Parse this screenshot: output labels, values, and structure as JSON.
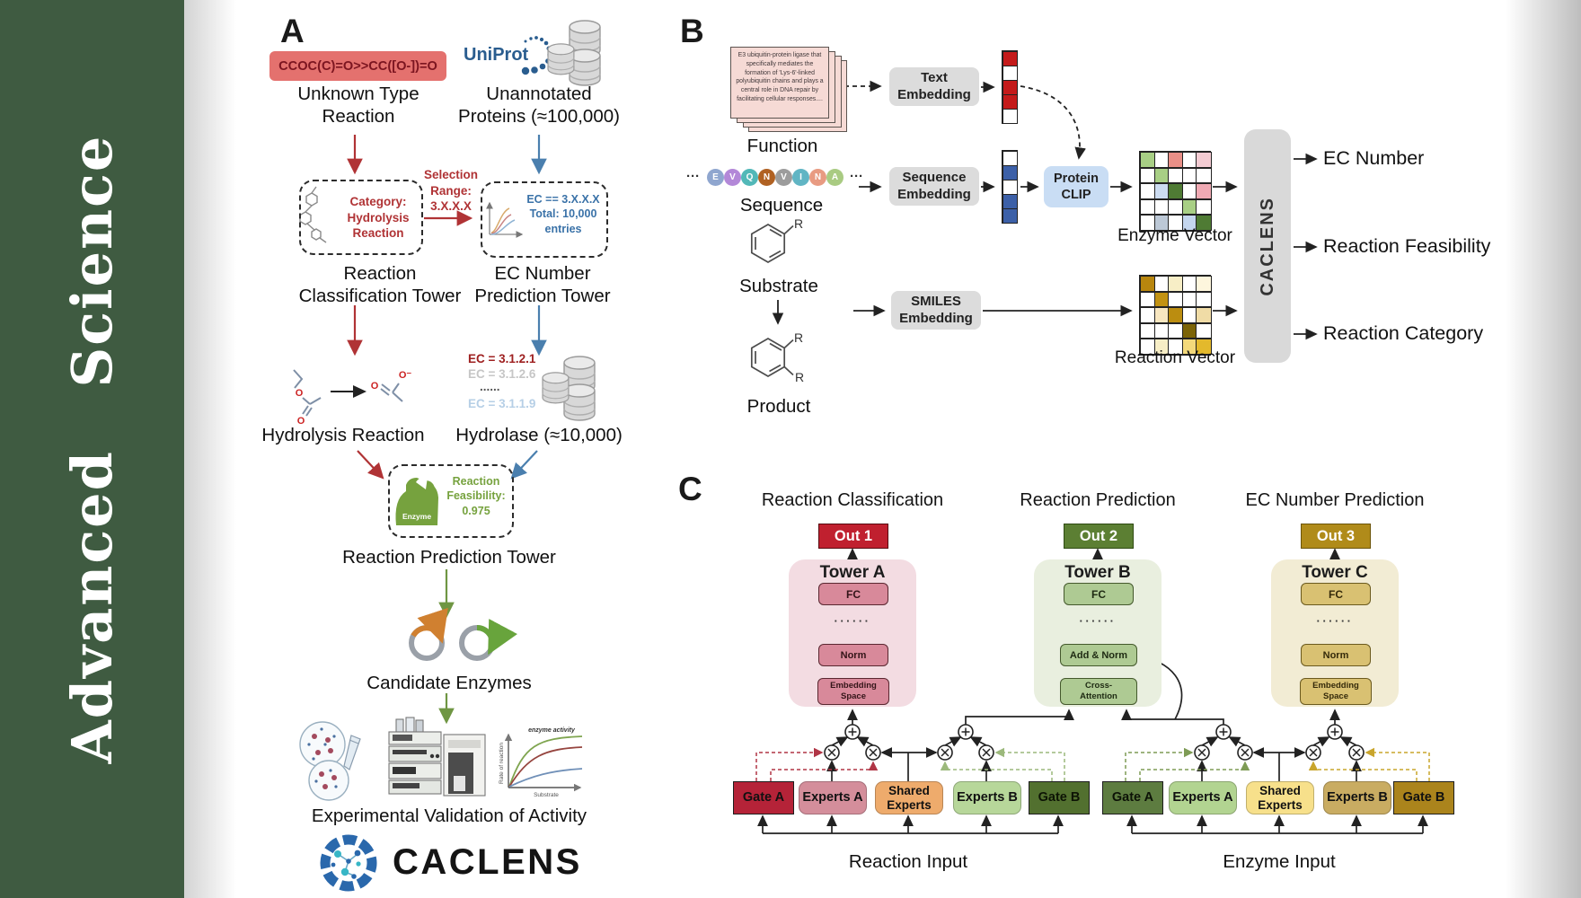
{
  "sidebar": {
    "journal": "Advanced  Science",
    "bg_color": "#3f5b41"
  },
  "panelA": {
    "label": "A",
    "smiles": "CCOC(C)=O>>CC([O-])=O",
    "unknown_reaction": "Unknown Type\nReaction",
    "uniprot": "UniProt",
    "unannotated": "Unannotated\nProteins (≈100,000)",
    "category_box": "Category:\nHydrolysis\nReaction",
    "selection": "Selection\nRange:\n3.X.X.X",
    "ec_box": "EC == 3.X.X.X\nTotal: 10,000\nentries",
    "classification_tower": "Reaction\nClassification Tower",
    "ec_tower": "EC Number\nPrediction Tower",
    "hydrolysis": "Hydrolysis Reaction",
    "hydrolase": "Hydrolase (≈10,000)",
    "ec_list": [
      {
        "text": "EC = 3.1.2.1",
        "color": "#9e2020"
      },
      {
        "text": "EC = 3.1.2.6",
        "color": "#c6c6c6"
      },
      {
        "text": "......",
        "color": "#555555"
      },
      {
        "text": "EC = 3.1.1.9",
        "color": "#b6cfe6"
      }
    ],
    "enzyme": "Enzyme",
    "feasibility": "Reaction\nFeasibility:\n0.975",
    "prediction_tower": "Reaction Prediction Tower",
    "candidates": "Candidate Enzymes",
    "validation": "Experimental Validation of Activity",
    "brand": "CACLENS",
    "plot": {
      "legend": "enzyme activity",
      "ylabel": "Rate of reaction",
      "xlabel": "Substrate"
    }
  },
  "panelB": {
    "label": "B",
    "function_card": "E3 ubiquitin-protein ligase that specifically mediates the formation of 'Lys-6'-linked polyubiquitin chains and plays a central role in DNA repair by facilitating cellular responses....",
    "function": "Function",
    "sequence": "Sequence",
    "substrate": "Substrate",
    "product": "Product",
    "r_label": "R",
    "dots": "···",
    "residues": [
      {
        "l": "E",
        "c": "#8fa6cf"
      },
      {
        "l": "V",
        "c": "#b388d8"
      },
      {
        "l": "Q",
        "c": "#52b8b8"
      },
      {
        "l": "N",
        "c": "#b06122"
      },
      {
        "l": "V",
        "c": "#9c9c9c"
      },
      {
        "l": "I",
        "c": "#61b5c4"
      },
      {
        "l": "N",
        "c": "#e89b82"
      },
      {
        "l": "A",
        "c": "#a9cb82"
      }
    ],
    "text_embedding": "Text\nEmbedding",
    "sequence_embedding": "Sequence\nEmbedding",
    "smiles_embedding": "SMILES\nEmbedding",
    "protein_clip": "Protein\nCLIP",
    "enzyme_vector": "Enzyme Vector",
    "reaction_vector": "Reaction Vector",
    "caclens": "CACLENS",
    "outputs": [
      "EC Number",
      "Reaction Feasibility",
      "Reaction Category"
    ],
    "text_vec": [
      "#c41a1a",
      "#ffffff",
      "#c41a1a",
      "#c41a1a",
      "#ffffff"
    ],
    "seq_vec": [
      "#ffffff",
      "#3c60a8",
      "#ffffff",
      "#3c60a8",
      "#3c60a8"
    ],
    "enzyme_matrix": [
      [
        "#a8cf85",
        "#ffffff",
        "#e98f87",
        "#ffffff",
        "#f4ccd3"
      ],
      [
        "#ffffff",
        "#a8cf85",
        "#ffffff",
        "#ffffff",
        "#ffffff"
      ],
      [
        "#ffffff",
        "#ccdcf1",
        "#4f7b34",
        "#ffffff",
        "#f0aab4"
      ],
      [
        "#ffffff",
        "#ffffff",
        "#ffffff",
        "#a8cf85",
        "#ffffff"
      ],
      [
        "#ffffff",
        "#bcc8d6",
        "#ffffff",
        "#c4d6ee",
        "#4f7b34"
      ]
    ],
    "reaction_matrix": [
      [
        "#b8860e",
        "#ffffff",
        "#f7eec6",
        "#ffffff",
        "#fdf6dd"
      ],
      [
        "#ffffff",
        "#c29212",
        "#ffffff",
        "#ffffff",
        "#ffffff"
      ],
      [
        "#ffffff",
        "#f8e7c0",
        "#bb8d10",
        "#ffffff",
        "#f0dca6"
      ],
      [
        "#ffffff",
        "#ffffff",
        "#ffffff",
        "#7c6407",
        "#ffffff"
      ],
      [
        "#ffffff",
        "#f7eec6",
        "#ffffff",
        "#f3d97b",
        "#e3b92c"
      ]
    ]
  },
  "panelC": {
    "label": "C",
    "dots": "······",
    "towers": [
      {
        "title": "Reaction Classification",
        "out": "Out 1",
        "name": "Tower A",
        "fc": "FC",
        "mid": "Norm",
        "bottom": "Embedding\nSpace"
      },
      {
        "title": "Reaction Prediction",
        "out": "Out 2",
        "name": "Tower B",
        "fc": "FC",
        "mid": "Add & Norm",
        "bottom": "Cross-\nAttention"
      },
      {
        "title": "EC Number Prediction",
        "out": "Out 3",
        "name": "Tower C",
        "fc": "FC",
        "mid": "Norm",
        "bottom": "Embedding\nSpace"
      }
    ],
    "moe": [
      {
        "gate_a": "Gate A",
        "experts_a": "Experts A",
        "shared": "Shared\nExperts",
        "experts_b": "Experts B",
        "gate_b": "Gate B",
        "input": "Reaction Input"
      },
      {
        "gate_a": "Gate A",
        "experts_a": "Experts A",
        "shared": "Shared\nExperts",
        "experts_b": "Experts B",
        "gate_b": "Gate B",
        "input": "Enzyme Input"
      }
    ]
  }
}
